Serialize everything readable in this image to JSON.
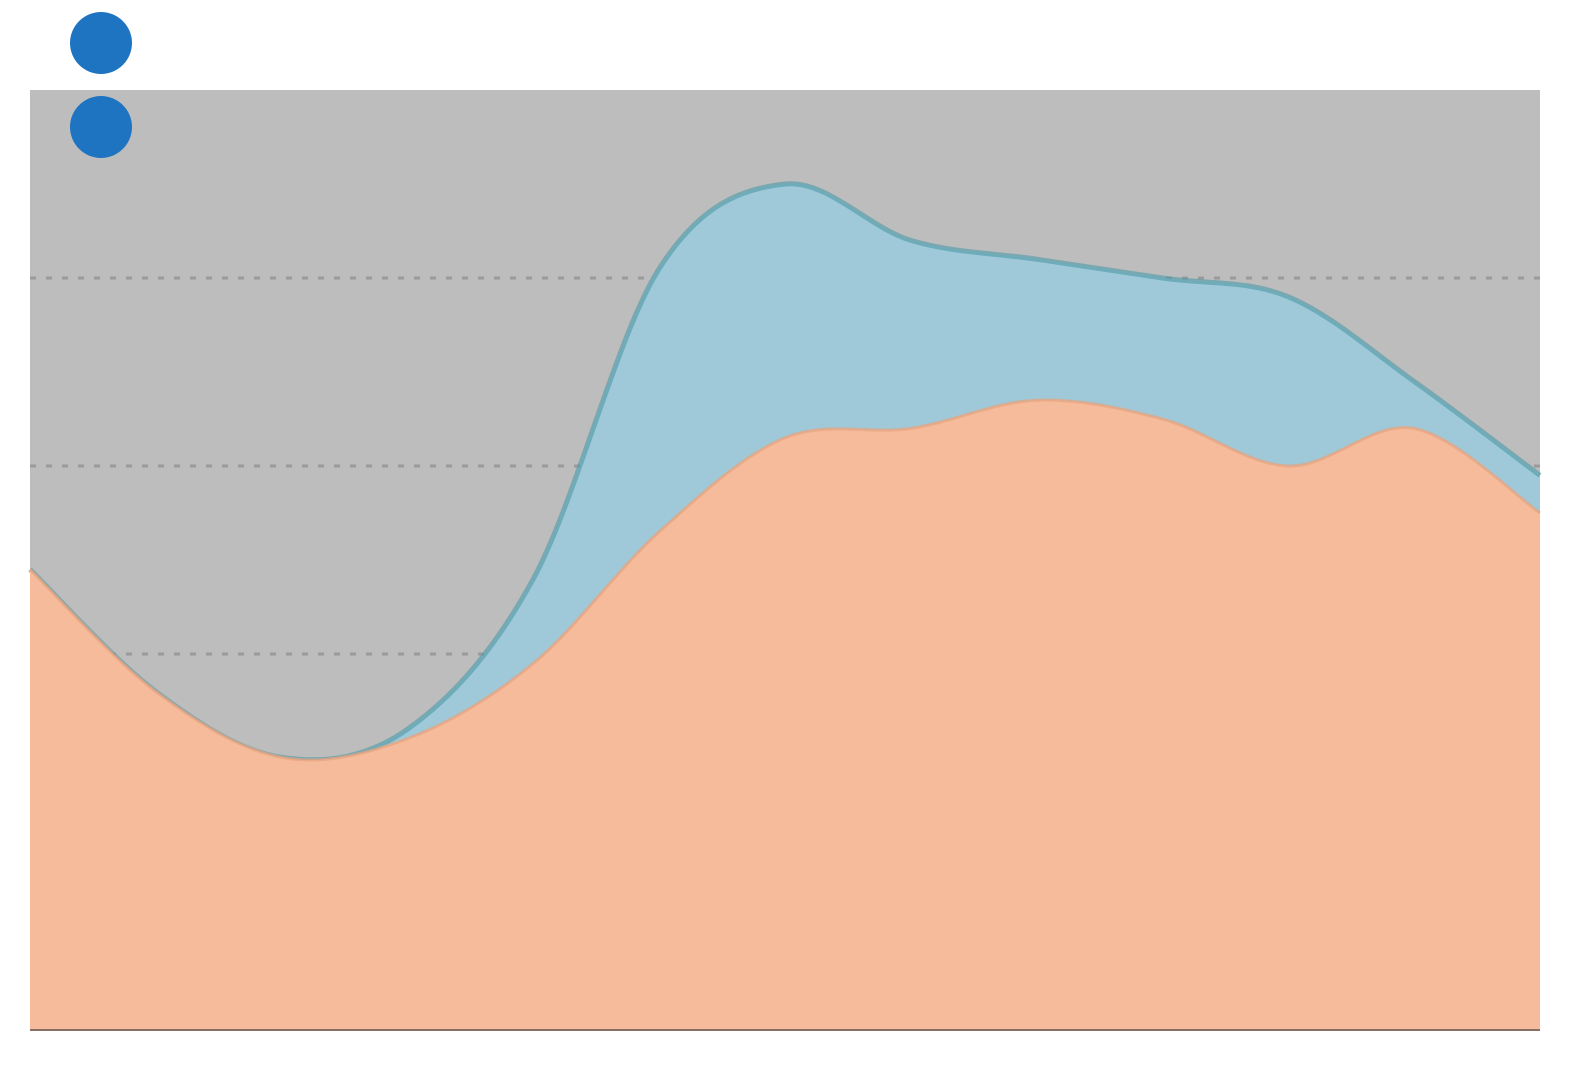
{
  "colors": {
    "background": "#bdbdbd",
    "gridline": "#9a9a9a",
    "legend_marker": "#1f74c1",
    "series_1": "#f5bb9a",
    "series_2": "#9fc9d8"
  },
  "legend": {
    "items": [
      {
        "label": "",
        "icon": "circle-marker-icon"
      },
      {
        "label": "",
        "icon": "circle-marker-icon"
      }
    ]
  },
  "chart_data": {
    "type": "area",
    "stacked": true,
    "grid": true,
    "legend_position": "top-left",
    "title": "",
    "xlabel": "",
    "ylabel": "",
    "x": [
      0,
      1,
      2,
      3,
      4,
      5,
      6,
      7,
      8,
      9,
      10,
      11,
      12
    ],
    "ylim": [
      0,
      100
    ],
    "series": [
      {
        "values": [
          49,
          36,
          29,
          31,
          39,
          53,
          63,
          64,
          67,
          65,
          60,
          64,
          55
        ]
      },
      {
        "values": [
          0,
          0,
          0,
          1,
          9,
          28,
          27,
          20,
          15,
          15,
          18,
          5,
          4
        ]
      }
    ]
  }
}
